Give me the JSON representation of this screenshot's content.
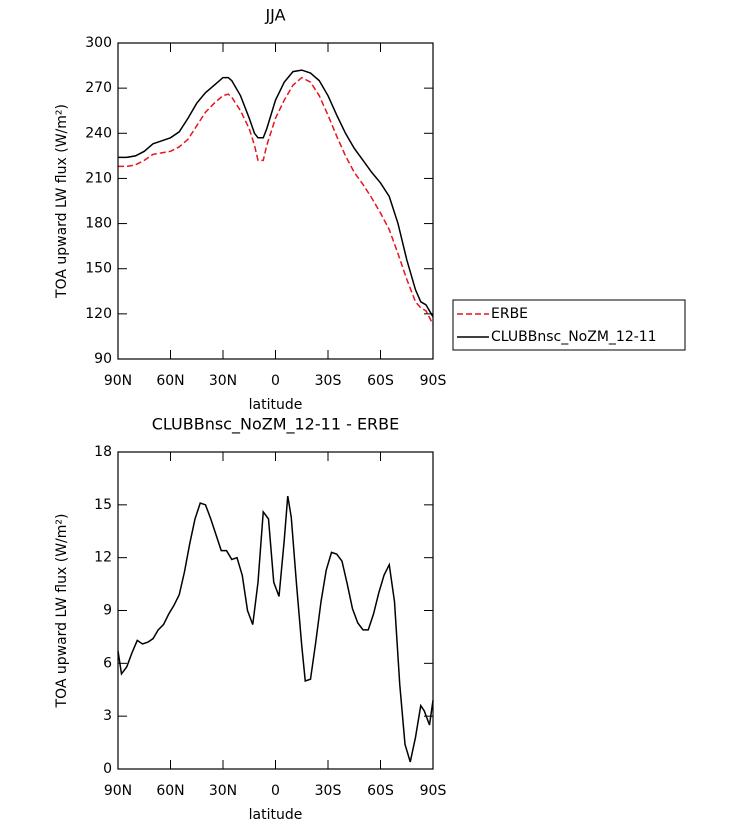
{
  "chart_data": [
    {
      "type": "line",
      "title": "JJA",
      "x_label": "latitude",
      "y_label": "TOA upward LW flux (W/m²)",
      "x": [
        90,
        85,
        80,
        75,
        70,
        65,
        60,
        55,
        50,
        45,
        40,
        35,
        30,
        27,
        25,
        20,
        15,
        12,
        10,
        7,
        5,
        0,
        -5,
        -10,
        -15,
        -20,
        -25,
        -30,
        -35,
        -40,
        -45,
        -50,
        -55,
        -60,
        -65,
        -70,
        -75,
        -80,
        -83,
        -86,
        -90
      ],
      "series": [
        {
          "name": "ERBE",
          "color": "#e8141a",
          "linestyle": "dashed",
          "values": [
            218,
            218,
            219,
            222,
            226,
            227,
            228,
            231,
            236,
            245,
            254,
            260,
            265,
            266,
            264,
            255,
            243,
            232,
            222,
            222,
            232,
            250,
            262,
            272,
            277,
            274,
            265,
            252,
            238,
            225,
            214,
            206,
            197,
            187,
            176,
            160,
            143,
            128,
            124,
            122,
            113
          ]
        },
        {
          "name": "CLUBBnsc_NoZM_12-11",
          "color": "#000000",
          "linestyle": "solid",
          "values": [
            224,
            224,
            225,
            228,
            233,
            235,
            237,
            241,
            250,
            260,
            267,
            272,
            277,
            277,
            275,
            265,
            250,
            240,
            237,
            237,
            243,
            262,
            274,
            281,
            282,
            280,
            275,
            265,
            252,
            240,
            230,
            222,
            214,
            207,
            198,
            180,
            156,
            136,
            128,
            126,
            118
          ]
        }
      ],
      "xlim": [
        90,
        -90
      ],
      "xticks": [
        {
          "value": 90,
          "label": "90N"
        },
        {
          "value": 60,
          "label": "60N"
        },
        {
          "value": 30,
          "label": "30N"
        },
        0,
        {
          "value": -30,
          "label": "30S"
        },
        {
          "value": -60,
          "label": "60S"
        },
        {
          "value": -90,
          "label": "90S"
        }
      ],
      "ylim": [
        90,
        300
      ],
      "yticks": [
        90,
        120,
        150,
        180,
        210,
        240,
        270,
        300
      ],
      "legend": "right"
    },
    {
      "type": "line",
      "title": "CLUBBnsc_NoZM_12-11 - ERBE",
      "x_label": "latitude",
      "y_label": "TOA upward LW flux (W/m²)",
      "x": [
        90,
        88,
        85,
        82,
        79,
        76,
        73,
        70,
        67,
        64,
        61,
        58,
        55,
        52,
        49,
        46,
        43,
        40,
        37,
        34,
        31,
        28,
        25,
        22,
        19,
        16,
        13,
        10,
        7,
        4,
        1,
        -2,
        -5,
        -7,
        -9,
        -12,
        -15,
        -17,
        -20,
        -23,
        -26,
        -29,
        -32,
        -35,
        -38,
        -41,
        -44,
        -47,
        -50,
        -53,
        -56,
        -59,
        -62,
        -65,
        -68,
        -71,
        -74,
        -77,
        -80,
        -83,
        -85,
        -88,
        -90
      ],
      "values": [
        6.7,
        5.4,
        5.8,
        6.6,
        7.3,
        7.1,
        7.2,
        7.4,
        7.9,
        8.2,
        8.8,
        9.3,
        9.9,
        11.2,
        12.8,
        14.2,
        15.1,
        15.0,
        14.2,
        13.3,
        12.4,
        12.4,
        11.9,
        12.0,
        11.0,
        9.0,
        8.2,
        10.6,
        14.6,
        14.2,
        10.6,
        9.8,
        13.0,
        15.5,
        14.3,
        10.5,
        7.0,
        5.0,
        5.1,
        7.2,
        9.5,
        11.3,
        12.3,
        12.2,
        11.8,
        10.5,
        9.1,
        8.3,
        7.9,
        7.9,
        8.8,
        10.0,
        11.0,
        11.6,
        9.5,
        4.8,
        1.4,
        0.4,
        1.8,
        3.6,
        3.3,
        2.5,
        3.9
      ],
      "color": "#000000",
      "xlim": [
        90,
        -90
      ],
      "xticks": [
        {
          "value": 90,
          "label": "90N"
        },
        {
          "value": 60,
          "label": "60N"
        },
        {
          "value": 30,
          "label": "30N"
        },
        0,
        {
          "value": -30,
          "label": "30S"
        },
        {
          "value": -60,
          "label": "60S"
        },
        {
          "value": -90,
          "label": "90S"
        }
      ],
      "ylim": [
        0,
        18
      ],
      "yticks": [
        0,
        3,
        6,
        9,
        12,
        15,
        18
      ]
    }
  ]
}
